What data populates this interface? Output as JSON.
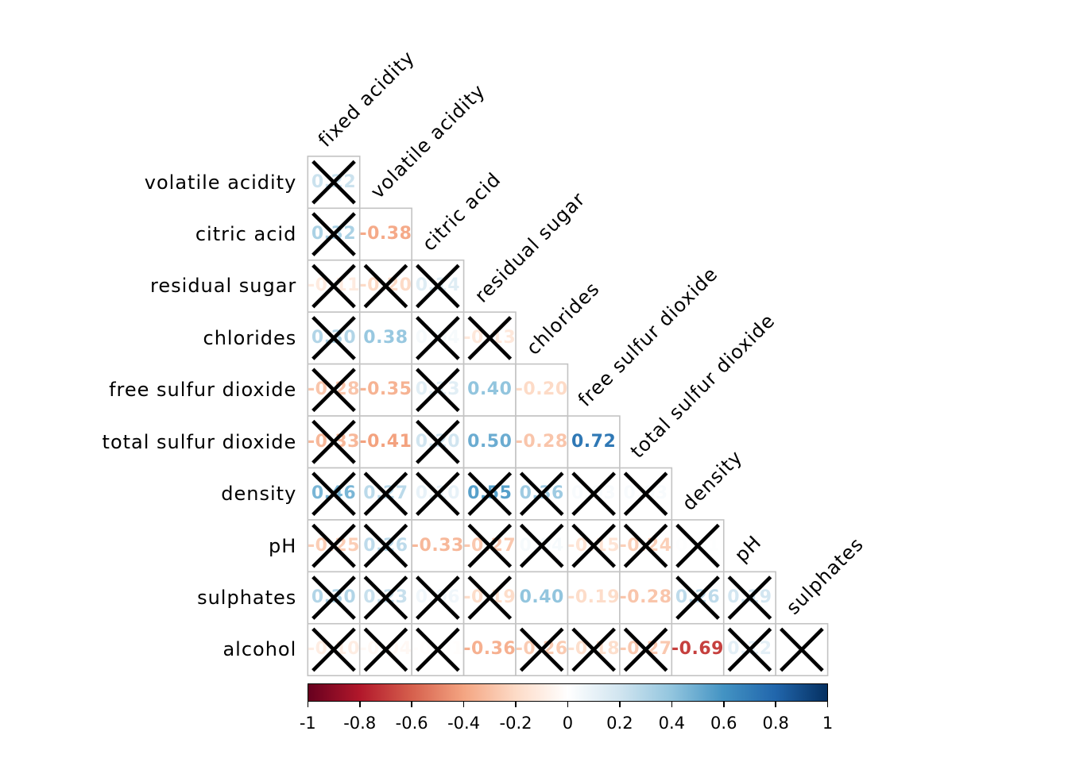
{
  "chart_data": {
    "type": "heatmap",
    "subtype": "correlation-matrix",
    "shape": "lower-triangle",
    "cross_symbol": "X",
    "variables": [
      "fixed acidity",
      "volatile acidity",
      "citric acid",
      "residual sugar",
      "chlorides",
      "free sulfur dioxide",
      "total sulfur dioxide",
      "density",
      "pH",
      "sulphates",
      "alcohol"
    ],
    "diagonal_labels": [
      "fixed acidity",
      "volatile acidity",
      "citric acid",
      "residual sugar",
      "chlorides",
      "free sulfur dioxide",
      "total sulfur dioxide",
      "density",
      "pH",
      "sulphates"
    ],
    "rows": [
      {
        "label": "volatile acidity",
        "cells": [
          {
            "value": 0.22,
            "display": "0.22",
            "crossed": true
          }
        ]
      },
      {
        "label": "citric acid",
        "cells": [
          {
            "value": 0.32,
            "display": "0.32",
            "crossed": true
          },
          {
            "value": -0.38,
            "display": "-0.38",
            "crossed": false
          }
        ]
      },
      {
        "label": "residual sugar",
        "cells": [
          {
            "value": -0.11,
            "display": "-0.11",
            "crossed": true
          },
          {
            "value": -0.2,
            "display": "-0.20",
            "crossed": true
          },
          {
            "value": 0.14,
            "display": "0.14",
            "crossed": true
          }
        ]
      },
      {
        "label": "chlorides",
        "cells": [
          {
            "value": 0.3,
            "display": "0.30",
            "crossed": true
          },
          {
            "value": 0.38,
            "display": "0.38",
            "crossed": false
          },
          {
            "value": 0.04,
            "display": "0.04",
            "crossed": true
          },
          {
            "value": -0.13,
            "display": "-0.13",
            "crossed": true
          }
        ]
      },
      {
        "label": "free sulfur dioxide",
        "cells": [
          {
            "value": -0.28,
            "display": "-0.28",
            "crossed": true
          },
          {
            "value": -0.35,
            "display": "-0.35",
            "crossed": false
          },
          {
            "value": 0.13,
            "display": "0.13",
            "crossed": true
          },
          {
            "value": 0.4,
            "display": "0.40",
            "crossed": false
          },
          {
            "value": -0.2,
            "display": "-0.20",
            "crossed": false
          }
        ]
      },
      {
        "label": "total sulfur dioxide",
        "cells": [
          {
            "value": -0.33,
            "display": "-0.33",
            "crossed": true
          },
          {
            "value": -0.41,
            "display": "-0.41",
            "crossed": false
          },
          {
            "value": 0.2,
            "display": "0.20",
            "crossed": true
          },
          {
            "value": 0.5,
            "display": "0.50",
            "crossed": false
          },
          {
            "value": -0.28,
            "display": "-0.28",
            "crossed": false
          },
          {
            "value": 0.72,
            "display": "0.72",
            "crossed": false
          }
        ]
      },
      {
        "label": "density",
        "cells": [
          {
            "value": 0.46,
            "display": "0.46",
            "crossed": true
          },
          {
            "value": 0.27,
            "display": "0.27",
            "crossed": true
          },
          {
            "value": 0.1,
            "display": "0.10",
            "crossed": true
          },
          {
            "value": 0.55,
            "display": "0.55",
            "crossed": true
          },
          {
            "value": 0.36,
            "display": "0.36",
            "crossed": true
          },
          {
            "value": 0.03,
            "display": "0.03",
            "crossed": true
          },
          {
            "value": 0.03,
            "display": "0.03",
            "crossed": true
          }
        ]
      },
      {
        "label": "pH",
        "cells": [
          {
            "value": -0.25,
            "display": "-0.25",
            "crossed": true
          },
          {
            "value": 0.26,
            "display": "0.26",
            "crossed": true
          },
          {
            "value": -0.33,
            "display": "-0.33",
            "crossed": false
          },
          {
            "value": -0.27,
            "display": "-0.27",
            "crossed": true
          },
          {
            "value": 0.04,
            "display": "0.04",
            "crossed": true
          },
          {
            "value": -0.15,
            "display": "-0.15",
            "crossed": true
          },
          {
            "value": -0.24,
            "display": "-0.24",
            "crossed": true
          },
          {
            "value": 0.01,
            "display": "0.01",
            "crossed": true
          }
        ]
      },
      {
        "label": "sulphates",
        "cells": [
          {
            "value": 0.3,
            "display": "0.30",
            "crossed": true
          },
          {
            "value": 0.23,
            "display": "0.23",
            "crossed": true
          },
          {
            "value": 0.06,
            "display": "0.06",
            "crossed": true
          },
          {
            "value": -0.19,
            "display": "-0.19",
            "crossed": true
          },
          {
            "value": 0.4,
            "display": "0.40",
            "crossed": false
          },
          {
            "value": -0.19,
            "display": "-0.19",
            "crossed": false
          },
          {
            "value": -0.28,
            "display": "-0.28",
            "crossed": false
          },
          {
            "value": 0.26,
            "display": "0.26",
            "crossed": true
          },
          {
            "value": 0.19,
            "display": "0.19",
            "crossed": true
          }
        ]
      },
      {
        "label": "alcohol",
        "cells": [
          {
            "value": -0.1,
            "display": "-0.10",
            "crossed": true
          },
          {
            "value": -0.04,
            "display": "-0.04",
            "crossed": true
          },
          {
            "value": -0.01,
            "display": "-0.01",
            "crossed": true
          },
          {
            "value": -0.36,
            "display": "-0.36",
            "crossed": false
          },
          {
            "value": -0.26,
            "display": "-0.26",
            "crossed": true
          },
          {
            "value": -0.18,
            "display": "-0.18",
            "crossed": true
          },
          {
            "value": -0.27,
            "display": "-0.27",
            "crossed": true
          },
          {
            "value": -0.69,
            "display": "-0.69",
            "crossed": false
          },
          {
            "value": 0.12,
            "display": "0.12",
            "crossed": true
          },
          {
            "value": 0.0,
            "display": "0",
            "crossed": true
          }
        ]
      }
    ],
    "colorbar": {
      "min": -1,
      "max": 1,
      "tick_labels": [
        "-1",
        "-0.8",
        "-0.6",
        "-0.4",
        "-0.2",
        "0",
        "0.2",
        "0.4",
        "0.6",
        "0.8",
        "1"
      ],
      "palette": [
        "#67001F",
        "#B2182B",
        "#D6604D",
        "#F4A582",
        "#FDDBC7",
        "#FFFFFF",
        "#D1E5F0",
        "#92C5DE",
        "#4393C3",
        "#2166AC",
        "#053061"
      ],
      "position": "bottom"
    }
  },
  "colors": {
    "background": "#ffffff",
    "grid_line": "#c3c3c3",
    "cross": "#000000",
    "label_text": "#000000",
    "colorbar_border": "#000000"
  }
}
